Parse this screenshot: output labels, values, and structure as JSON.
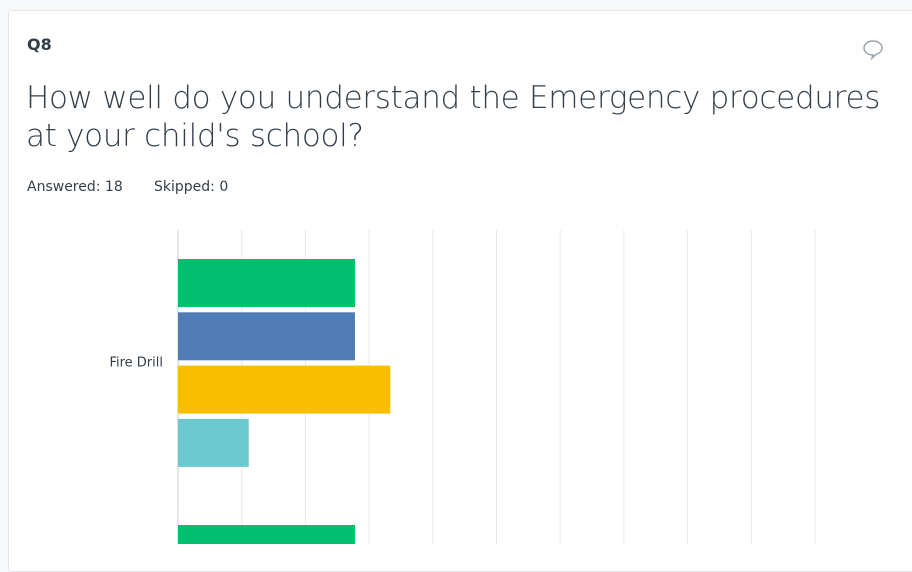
{
  "question_number": "Q8",
  "question": "How well do you understand the Emergency procedures at your child's school?",
  "answered": "Answered: 18",
  "skipped": "Skipped: 0",
  "chart_data": {
    "type": "bar",
    "orientation": "horizontal",
    "categories": [
      "Fire Drill",
      null
    ],
    "series": [
      {
        "color": "#00bf6f",
        "values": [
          27.78,
          27.78
        ]
      },
      {
        "color": "#507cb6",
        "values": [
          27.78,
          null
        ]
      },
      {
        "color": "#f9be00",
        "values": [
          33.33,
          null
        ]
      },
      {
        "color": "#6bc8cd",
        "values": [
          11.11,
          null
        ]
      }
    ],
    "xlim": [
      0,
      100
    ],
    "xticks": [
      0,
      10,
      20,
      30,
      40,
      50,
      60,
      70,
      80,
      90,
      100
    ],
    "grid": true
  }
}
